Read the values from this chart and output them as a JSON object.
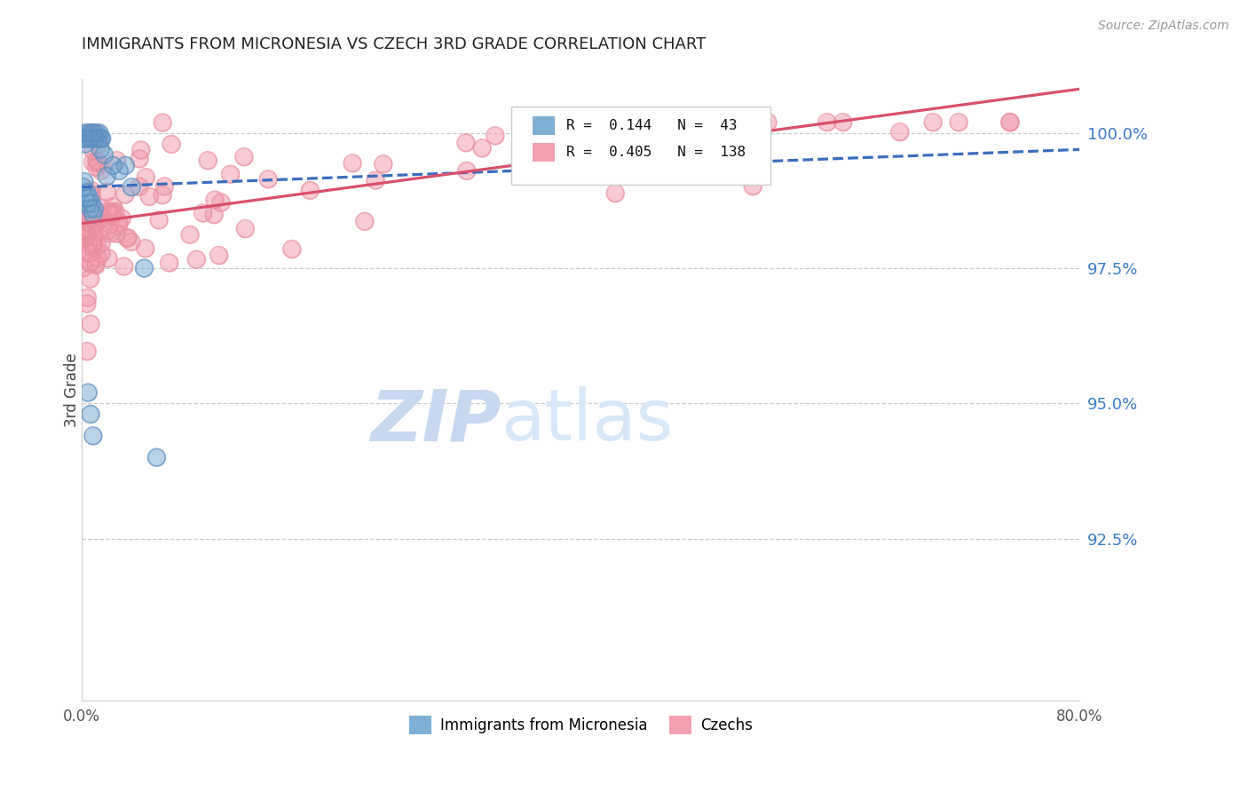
{
  "title": "IMMIGRANTS FROM MICRONESIA VS CZECH 3RD GRADE CORRELATION CHART",
  "source": "Source: ZipAtlas.com",
  "ylabel": "3rd Grade",
  "ytick_values": [
    1.0,
    0.975,
    0.95,
    0.925
  ],
  "xlim": [
    0.0,
    0.8
  ],
  "ylim": [
    0.895,
    1.01
  ],
  "legend_micronesia": "Immigrants from Micronesia",
  "legend_czechs": "Czechs",
  "R_micronesia": 0.144,
  "N_micronesia": 43,
  "R_czechs": 0.405,
  "N_czechs": 138,
  "color_micronesia": "#7fafd4",
  "color_czechs": "#f4a0b0",
  "color_line_micronesia": "#3a6dbf",
  "color_line_czechs": "#d94f6a",
  "watermark_zip_color": "#c8d8f0",
  "watermark_atlas_color": "#d8e8f8"
}
